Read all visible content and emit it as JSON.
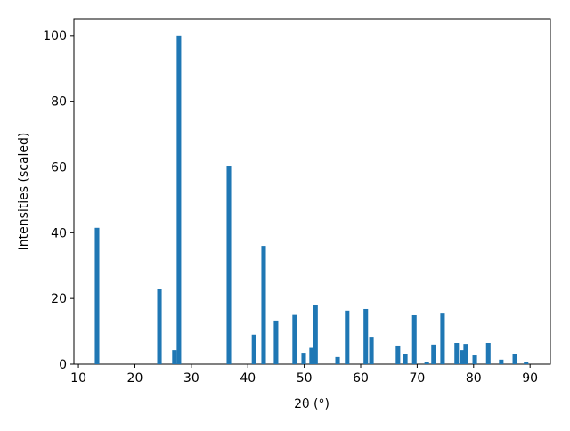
{
  "chart_data": {
    "type": "bar",
    "xlabel": "2θ (°)",
    "ylabel": "Intensities (scaled)",
    "x": [
      13.3,
      24.35,
      27.0,
      27.8,
      36.65,
      41.1,
      42.8,
      45.0,
      48.3,
      49.9,
      51.3,
      52.0,
      55.9,
      57.6,
      60.9,
      61.9,
      66.6,
      67.9,
      69.5,
      71.7,
      72.9,
      74.5,
      77.0,
      78.0,
      78.6,
      80.2,
      82.6,
      84.9,
      87.3,
      89.3
    ],
    "values": [
      41.5,
      22.8,
      4.3,
      100,
      60.4,
      9,
      36,
      13.3,
      15,
      3.5,
      5,
      17.9,
      2.2,
      16.3,
      16.8,
      8.1,
      5.7,
      3,
      14.9,
      0.8,
      6,
      15.4,
      6.5,
      4.3,
      6.2,
      2.7,
      6.5,
      1.4,
      3,
      0.6
    ],
    "color": "#1f77b4",
    "xlim": [
      9.2,
      93.6
    ],
    "xticks": [
      10,
      20,
      30,
      40,
      50,
      60,
      70,
      80,
      90
    ],
    "ylim": [
      0,
      105.1
    ],
    "yticks": [
      0,
      20,
      40,
      60,
      80,
      100
    ],
    "grid": false
  }
}
